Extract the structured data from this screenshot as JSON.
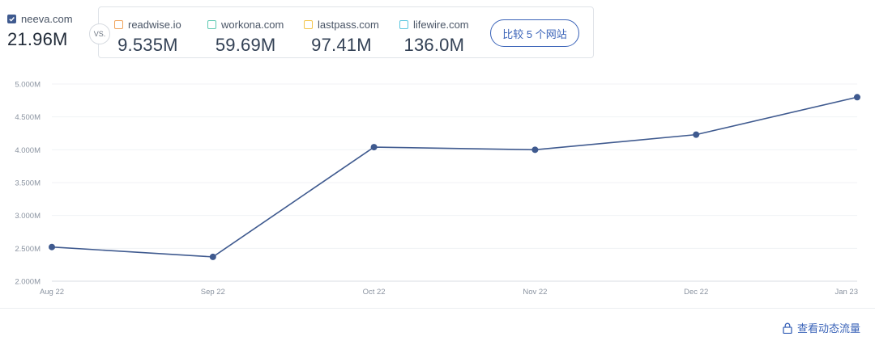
{
  "primary": {
    "site": "neeva.com",
    "value": "21.96M",
    "color": "#3f5a8f"
  },
  "vs_label": "VS.",
  "competitors": [
    {
      "site": "readwise.io",
      "value": "9.535M",
      "color": "#f0a45c"
    },
    {
      "site": "workona.com",
      "value": "59.69M",
      "color": "#5fcab3"
    },
    {
      "site": "lastpass.com",
      "value": "97.41M",
      "color": "#f3c54a"
    },
    {
      "site": "lifewire.com",
      "value": "136.0M",
      "color": "#5cc7e0"
    }
  ],
  "compare_button": "比较 5 个网站",
  "dynamic_link": "查看动态流量",
  "chart_data": {
    "type": "line",
    "categories": [
      "Aug 22",
      "Sep 22",
      "Oct 22",
      "Nov 22",
      "Dec 22",
      "Jan 23"
    ],
    "series": [
      {
        "name": "neeva.com",
        "values": [
          2.52,
          2.37,
          4.04,
          4.0,
          4.23,
          4.8
        ],
        "color": "#3f5a8f"
      }
    ],
    "y_ticks": [
      "2.000M",
      "2.500M",
      "3.000M",
      "3.500M",
      "4.000M",
      "4.500M",
      "5.000M"
    ],
    "ylim": [
      2.0,
      5.0
    ],
    "grid": true,
    "legend": "none"
  }
}
